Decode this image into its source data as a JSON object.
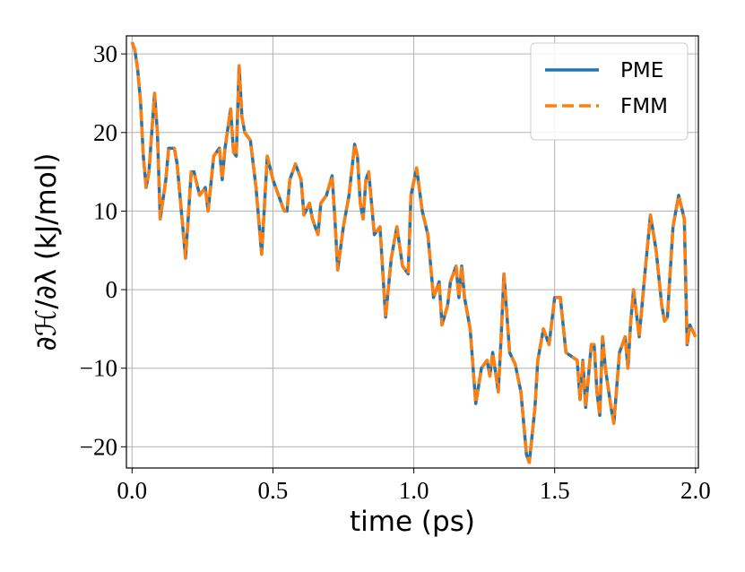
{
  "chart_data": {
    "type": "line",
    "xlabel": "time (ps)",
    "ylabel": "∂ℋ/∂λ (kJ/mol)",
    "x": [
      0,
      0.01,
      0.02,
      0.03,
      0.04,
      0.05,
      0.06,
      0.07,
      0.08,
      0.09,
      0.1,
      0.12,
      0.13,
      0.15,
      0.16,
      0.18,
      0.19,
      0.21,
      0.22,
      0.24,
      0.26,
      0.27,
      0.29,
      0.31,
      0.32,
      0.33,
      0.35,
      0.36,
      0.37,
      0.38,
      0.39,
      0.4,
      0.42,
      0.44,
      0.46,
      0.48,
      0.5,
      0.52,
      0.54,
      0.55,
      0.56,
      0.58,
      0.6,
      0.61,
      0.63,
      0.64,
      0.66,
      0.67,
      0.69,
      0.71,
      0.72,
      0.73,
      0.75,
      0.77,
      0.79,
      0.8,
      0.81,
      0.82,
      0.83,
      0.84,
      0.86,
      0.88,
      0.9,
      0.92,
      0.94,
      0.96,
      0.98,
      0.99,
      1.01,
      1.03,
      1.05,
      1.07,
      1.08,
      1.09,
      1.1,
      1.12,
      1.13,
      1.15,
      1.16,
      1.17,
      1.18,
      1.2,
      1.22,
      1.24,
      1.26,
      1.27,
      1.28,
      1.3,
      1.31,
      1.32,
      1.34,
      1.36,
      1.38,
      1.4,
      1.41,
      1.43,
      1.44,
      1.46,
      1.48,
      1.5,
      1.52,
      1.54,
      1.56,
      1.58,
      1.59,
      1.6,
      1.61,
      1.63,
      1.64,
      1.65,
      1.66,
      1.67,
      1.68,
      1.7,
      1.71,
      1.73,
      1.75,
      1.76,
      1.77,
      1.78,
      1.79,
      1.8,
      1.82,
      1.84,
      1.86,
      1.88,
      1.89,
      1.9,
      1.92,
      1.94,
      1.96,
      1.97,
      1.98,
      2.0
    ],
    "series": [
      {
        "name": "PME",
        "color": "#1f77b4",
        "linestyle": "solid",
        "values": [
          31.5,
          30.5,
          28,
          24,
          17,
          13,
          15,
          20,
          25,
          20,
          9,
          14,
          18,
          18,
          16,
          8,
          4,
          15,
          15,
          12,
          13,
          10,
          17,
          18,
          14,
          18,
          23,
          17.5,
          17,
          28.5,
          22,
          20,
          19,
          13,
          4.5,
          17,
          14,
          12,
          10,
          10,
          14,
          16,
          14,
          9.5,
          11,
          9,
          7,
          11,
          12,
          14.5,
          9,
          2.5,
          8,
          12,
          18.5,
          17,
          11,
          9,
          14,
          15,
          7,
          8,
          -3.5,
          4,
          8,
          3,
          2,
          12,
          15.5,
          10,
          7,
          -1,
          0,
          1,
          -4.5,
          -2,
          1,
          3,
          -1,
          3,
          -1,
          -5,
          -14.5,
          -10,
          -9,
          -11,
          -8,
          -13,
          -6,
          2,
          -8,
          -9.5,
          -13,
          -21,
          -22,
          -15,
          -9,
          -5,
          -7,
          -1,
          -1,
          -8,
          -8.5,
          -9,
          -14,
          -9,
          -15,
          -7,
          -7,
          -13,
          -16,
          -6,
          -10,
          -15,
          -17,
          -8,
          -6,
          -10,
          -4,
          0,
          -3,
          -6,
          2,
          9.5,
          5,
          -2,
          -4,
          -3.5,
          8,
          12,
          9,
          -7,
          -4.5,
          -6
        ]
      },
      {
        "name": "FMM",
        "color": "#ff7f0e",
        "linestyle": "dashed",
        "values": [
          31.5,
          30.5,
          28,
          24,
          17,
          13,
          15,
          20,
          25,
          20,
          9,
          14,
          18,
          18,
          16,
          8,
          4,
          15,
          15,
          12,
          13,
          10,
          17,
          18,
          14,
          18,
          23,
          17.5,
          17,
          28.5,
          22,
          20,
          19,
          13,
          4.5,
          17,
          14,
          12,
          10,
          10,
          14,
          16,
          14,
          9.5,
          11,
          9,
          7,
          11,
          12,
          14.5,
          9,
          2.5,
          8,
          12,
          18.5,
          17,
          11,
          9,
          14,
          15,
          7,
          8,
          -3.5,
          4,
          8,
          3,
          2,
          12,
          15.5,
          10,
          7,
          -1,
          0,
          1,
          -4.5,
          -2,
          1,
          3,
          -1,
          3,
          -1,
          -5,
          -14.5,
          -10,
          -9,
          -11,
          -8,
          -13,
          -6,
          2,
          -8,
          -9.5,
          -13,
          -21,
          -22,
          -15,
          -9,
          -5,
          -7,
          -1,
          -1,
          -8,
          -8.5,
          -9,
          -14,
          -9,
          -15,
          -7,
          -7,
          -13,
          -16,
          -6,
          -10,
          -15,
          -17,
          -8,
          -6,
          -10,
          -4,
          0,
          -3,
          -6,
          2,
          9.5,
          5,
          -2,
          -4,
          -3.5,
          8,
          12,
          9,
          -7,
          -4.5,
          -6
        ]
      }
    ],
    "xlim": [
      -0.02,
      2.01
    ],
    "ylim": [
      -22.7,
      32.3
    ],
    "xticks": [
      {
        "value": 0,
        "label": "0.0"
      },
      0.5,
      {
        "value": 1,
        "label": "1.0"
      },
      1.5,
      {
        "value": 2,
        "label": "2.0"
      }
    ],
    "yticks": [
      {
        "value": -20,
        "label": "−20"
      },
      {
        "value": -10,
        "label": "−10"
      },
      0,
      10,
      20,
      30
    ],
    "grid": true,
    "legend": "upper right"
  }
}
